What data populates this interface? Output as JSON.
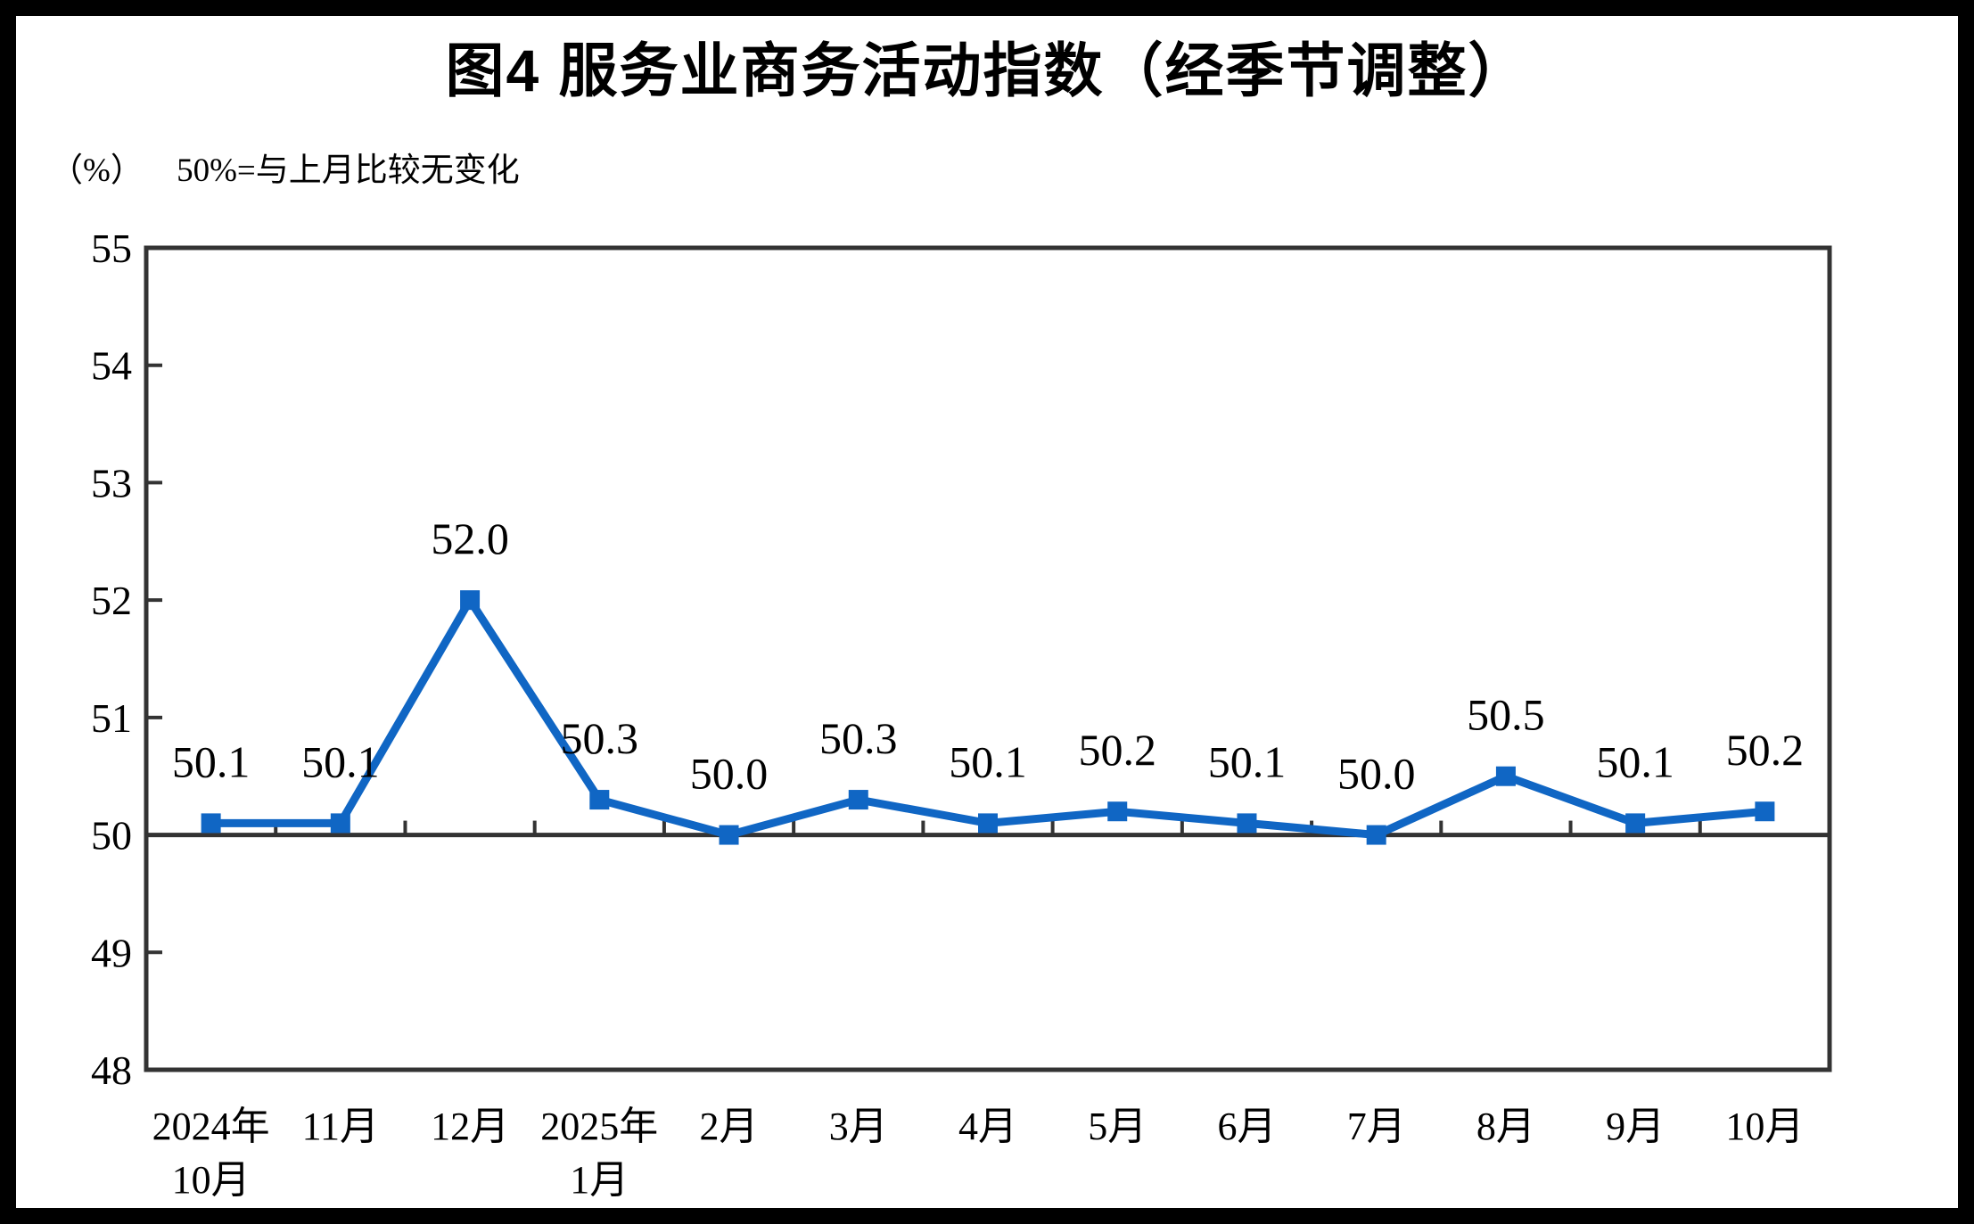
{
  "chart_data": {
    "type": "line",
    "title": "图4  服务业商务活动指数（经季节调整）",
    "unit_label": "（%）",
    "note": "50%=与上月比较无变化",
    "categories": [
      "2024年\n10月",
      "11月",
      "12月",
      "2025年\n1月",
      "2月",
      "3月",
      "4月",
      "5月",
      "6月",
      "7月",
      "8月",
      "9月",
      "10月"
    ],
    "values": [
      50.1,
      50.1,
      52.0,
      50.3,
      50.0,
      50.3,
      50.1,
      50.2,
      50.1,
      50.0,
      50.5,
      50.1,
      50.2
    ],
    "data_labels": [
      "50.1",
      "50.1",
      "52.0",
      "50.3",
      "50.0",
      "50.3",
      "50.1",
      "50.2",
      "50.1",
      "50.0",
      "50.5",
      "50.1",
      "50.2"
    ],
    "y_ticks": [
      48,
      49,
      50,
      51,
      52,
      53,
      54,
      55
    ],
    "ylim": [
      48,
      55
    ],
    "baseline_value": 50,
    "xlabel": "",
    "ylabel": "%",
    "grid": false,
    "legend": "none",
    "line_color": "#1066C4",
    "axis_color": "#333333",
    "text_color": "#000000"
  }
}
